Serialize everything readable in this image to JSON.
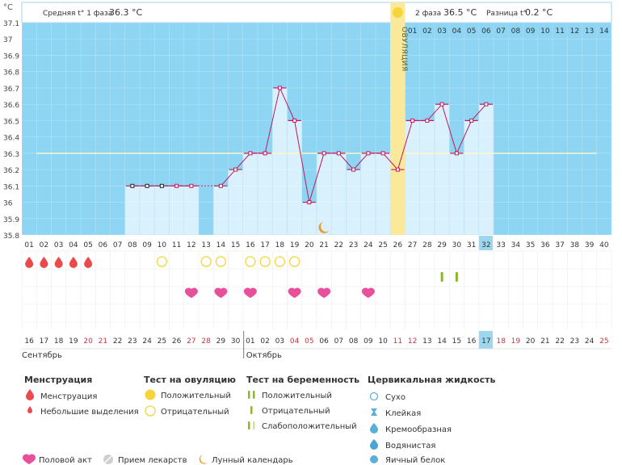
{
  "header": {
    "unit": "°C",
    "phase1_label": "Средняя t° 1 фаза",
    "phase1_value": "36.3 °C",
    "phase2_label": "2 фаза",
    "phase2_value": "36.5 °C",
    "diff_label": "Разница t°",
    "diff_value": "0.2 °C",
    "ovulation_label": "ОВУЛЯЦИЯ"
  },
  "colors": {
    "chart_bg": "#8dd5f3",
    "bar_fill": "#d9f1fc",
    "bar_stroke": "#a7d6ee",
    "line": "#c2185b",
    "baseline": "#fdf7c8",
    "ovulation": "#fbe99b",
    "sun": "#f5d43c",
    "moon": "#e89c2b",
    "menstruation": "#ea4a4a",
    "heart": "#e8509c",
    "positive_test": "#8bb829",
    "weekend": "#cc3344",
    "current_day": "#9dd7ef"
  },
  "chart_data": {
    "type": "line",
    "title": "",
    "ylabel": "°C",
    "ylim": [
      35.8,
      37.1
    ],
    "yticks": [
      "37.1",
      "37",
      "36.9",
      "36.8",
      "36.7",
      "36.6",
      "36.5",
      "36.4",
      "36.3",
      "36.2",
      "36.1",
      "36",
      "35.9",
      "35.8"
    ],
    "baseline_temp": 36.3,
    "ovulation_day": 26,
    "current_day": 32,
    "moon_day": 21,
    "cycle_days": [
      "01",
      "02",
      "03",
      "04",
      "05",
      "06",
      "07",
      "08",
      "09",
      "10",
      "11",
      "12",
      "13",
      "14",
      "15",
      "16",
      "17",
      "18",
      "19",
      "20",
      "21",
      "22",
      "23",
      "24",
      "25",
      "26",
      "27",
      "28",
      "29",
      "30",
      "31",
      "32",
      "33",
      "34",
      "35",
      "36",
      "37",
      "38",
      "39",
      "40"
    ],
    "phase2_day_labels": [
      "01",
      "02",
      "03",
      "04",
      "05",
      "06",
      "07",
      "08",
      "09",
      "10",
      "11",
      "12",
      "13",
      "14"
    ],
    "dates": [
      "16",
      "17",
      "18",
      "19",
      "20",
      "21",
      "22",
      "23",
      "24",
      "25",
      "26",
      "27",
      "28",
      "29",
      "30",
      "01",
      "02",
      "03",
      "04",
      "05",
      "06",
      "07",
      "08",
      "09",
      "10",
      "11",
      "12",
      "13",
      "14",
      "15",
      "16",
      "17",
      "18",
      "19",
      "20",
      "21",
      "22",
      "23",
      "24",
      "25"
    ],
    "weekend_days": [
      5,
      6,
      12,
      13,
      19,
      20,
      26,
      27,
      33,
      34,
      40
    ],
    "months": [
      {
        "name": "Сентябрь",
        "start_day": 1
      },
      {
        "name": "Октябрь",
        "start_day": 16
      }
    ],
    "series": [
      {
        "values": [
          {
            "day": 8,
            "temp": 36.1
          },
          {
            "day": 9,
            "temp": 36.1
          },
          {
            "day": 10,
            "temp": 36.1
          },
          {
            "day": 11,
            "temp": 36.1
          },
          {
            "day": 12,
            "temp": 36.1
          },
          {
            "day": 14,
            "temp": 36.1
          },
          {
            "day": 15,
            "temp": 36.2
          },
          {
            "day": 16,
            "temp": 36.3
          },
          {
            "day": 17,
            "temp": 36.3
          },
          {
            "day": 18,
            "temp": 36.7
          },
          {
            "day": 19,
            "temp": 36.5
          },
          {
            "day": 20,
            "temp": 36.0
          },
          {
            "day": 21,
            "temp": 36.3
          },
          {
            "day": 22,
            "temp": 36.3
          },
          {
            "day": 23,
            "temp": 36.2
          },
          {
            "day": 24,
            "temp": 36.3
          },
          {
            "day": 25,
            "temp": 36.3
          },
          {
            "day": 26,
            "temp": 36.2
          },
          {
            "day": 27,
            "temp": 36.5
          },
          {
            "day": 28,
            "temp": 36.5
          },
          {
            "day": 29,
            "temp": 36.6
          },
          {
            "day": 30,
            "temp": 36.3
          },
          {
            "day": 31,
            "temp": 36.5
          },
          {
            "day": 32,
            "temp": 36.6
          }
        ]
      }
    ],
    "dark_marker_days": [
      8,
      9,
      10
    ],
    "menstruation_days": [
      1,
      2,
      3,
      4,
      5
    ],
    "ovulation_test_negative_days": [
      10,
      13,
      14,
      16,
      17,
      18,
      19
    ],
    "pregnancy_test_positive_days": [
      29,
      30
    ],
    "intercourse_days": [
      12,
      14,
      16,
      19,
      21,
      24
    ]
  },
  "legend": {
    "menstruation": {
      "title": "Менструация",
      "items": [
        "Менструация",
        "Небольшие выделения"
      ]
    },
    "ovulation_test": {
      "title": "Тест на овуляцию",
      "items": [
        "Положительный",
        "Отрицательный"
      ]
    },
    "pregnancy_test": {
      "title": "Тест на беременность",
      "items": [
        "Положительный",
        "Отрицательный",
        "Слабоположительный"
      ]
    },
    "cervical": {
      "title": "Цервикальная жидкость",
      "items": [
        "Сухо",
        "Клейкая",
        "Кремообразная",
        "Водянистая",
        "Яичный белок"
      ]
    },
    "bottom": {
      "intercourse": "Половой акт",
      "medication": "Прием лекарств",
      "lunar": "Лунный календарь"
    }
  }
}
